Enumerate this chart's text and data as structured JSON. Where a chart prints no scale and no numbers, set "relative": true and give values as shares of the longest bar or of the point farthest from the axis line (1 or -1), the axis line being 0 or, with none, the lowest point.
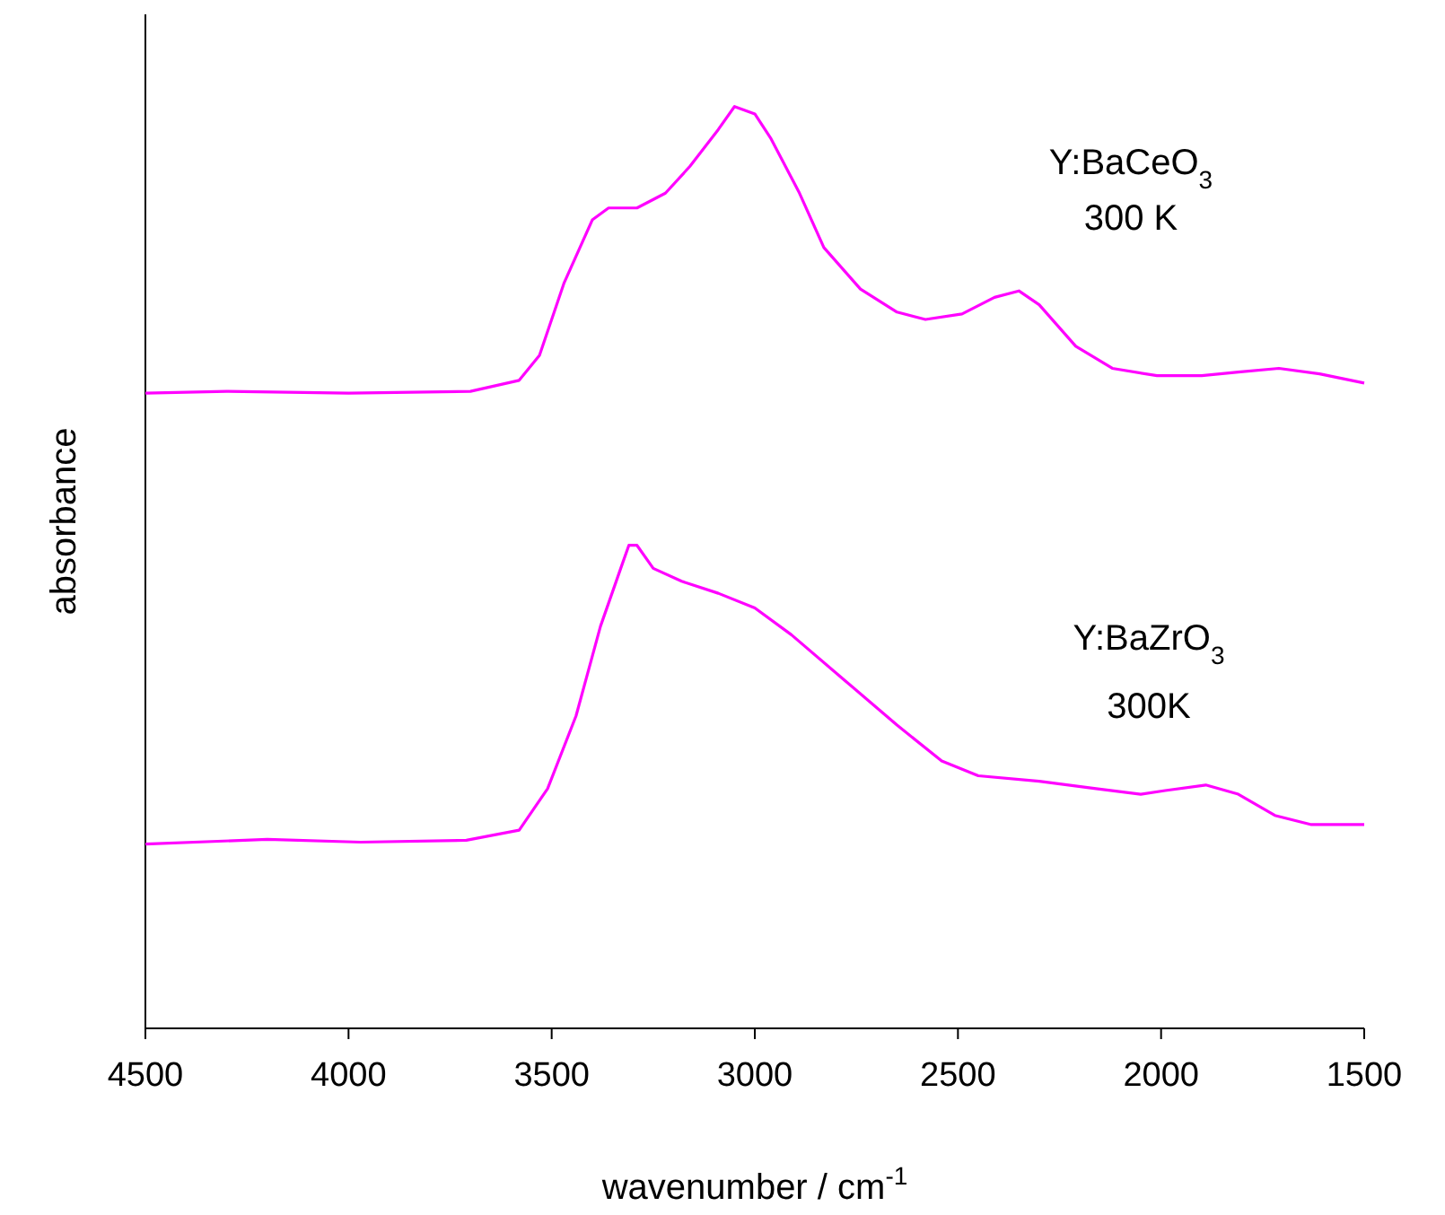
{
  "chart_data": {
    "type": "line",
    "relative": true,
    "xlabel": "wavenumber / cm$^{-1}$",
    "ylabel": "absorbance",
    "xlim": [
      4500,
      1500
    ],
    "xticks": [
      4500,
      4000,
      3500,
      3000,
      2500,
      2000,
      1500
    ],
    "tick_labels": "x",
    "marker": "none",
    "line_style": "solid",
    "annotations": [
      "Y:BaCeO$_{3}$",
      "300 K",
      "Y:BaZrO$_{3}$",
      "300K"
    ],
    "series": [
      {
        "color": "#ff00ff",
        "x": [
          4500,
          4300,
          4000,
          3700,
          3580,
          3530,
          3470,
          3400,
          3360,
          3290,
          3220,
          3160,
          3090,
          3050,
          3000,
          2960,
          2890,
          2830,
          2740,
          2650,
          2580,
          2490,
          2410,
          2350,
          2300,
          2210,
          2120,
          2010,
          1900,
          1810,
          1710,
          1610,
          1500
        ],
        "values": [
          0.689,
          0.691,
          0.689,
          0.691,
          0.703,
          0.73,
          0.808,
          0.877,
          0.89,
          0.89,
          0.906,
          0.935,
          0.975,
          1,
          0.992,
          0.965,
          0.906,
          0.847,
          0.802,
          0.777,
          0.769,
          0.775,
          0.793,
          0.8,
          0.785,
          0.74,
          0.716,
          0.708,
          0.708,
          0.712,
          0.716,
          0.71,
          0.7
        ]
      },
      {
        "color": "#ff00ff",
        "x": [
          4500,
          4200,
          3970,
          3710,
          3580,
          3510,
          3440,
          3380,
          3330,
          3310,
          3290,
          3250,
          3180,
          3090,
          3000,
          2910,
          2780,
          2650,
          2540,
          2450,
          2300,
          2160,
          2050,
          1990,
          1890,
          1810,
          1720,
          1630,
          1500
        ],
        "values": [
          0.2,
          0.205,
          0.202,
          0.204,
          0.215,
          0.26,
          0.339,
          0.436,
          0.499,
          0.524,
          0.524,
          0.499,
          0.485,
          0.472,
          0.456,
          0.427,
          0.378,
          0.329,
          0.29,
          0.274,
          0.268,
          0.26,
          0.254,
          0.258,
          0.264,
          0.254,
          0.231,
          0.221,
          0.221
        ]
      }
    ]
  }
}
